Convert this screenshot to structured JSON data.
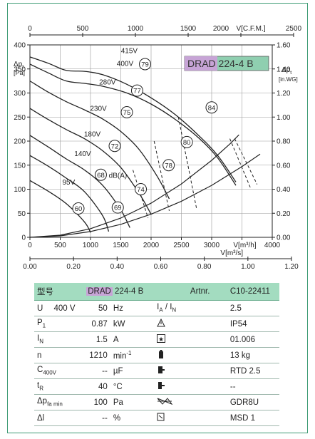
{
  "chart_data": {
    "type": "line",
    "title_model": {
      "prefix": "DRAD",
      "suffix": " 224-4 B"
    },
    "left_axis": {
      "label_lines": [
        "Δp",
        "[Pa]"
      ],
      "sub": "t",
      "ticks": [
        0,
        50,
        100,
        150,
        200,
        250,
        300,
        350,
        400
      ],
      "ylim": [
        0,
        400
      ]
    },
    "right_axis": {
      "label_lines": [
        "Δp",
        "[in.WG]"
      ],
      "sub": "t",
      "ticks": [
        "0.00",
        "0.20",
        "0.40",
        "0.60",
        "0.80",
        "1.00",
        "1.20",
        "1.40",
        "1.60"
      ]
    },
    "bottom_axis_m3h": {
      "label": "V[m³/h]",
      "ticks": [
        "0",
        "500",
        "1000",
        "1500",
        "2000",
        "2500",
        "3000",
        "3500",
        "4000"
      ],
      "xlim": [
        0,
        4000
      ]
    },
    "top_axis_cfm": {
      "label": "V[C.F.M.]",
      "ticks": [
        "0",
        "500",
        "1000",
        "1500",
        "2000",
        "2500"
      ]
    },
    "bottom_axis_m3s": {
      "label": "V[m³/s]",
      "ticks": [
        "0.00",
        "0.20",
        "0.40",
        "0.60",
        "0.80",
        "1.00",
        "1.20"
      ]
    },
    "series": [
      {
        "name": "415V",
        "x": [
          0,
          300,
          600,
          900,
          1200,
          1600,
          2000,
          2400,
          2800,
          3100,
          3400
        ],
        "y": [
          375,
          362,
          347,
          345,
          338,
          318,
          290,
          255,
          210,
          170,
          115
        ]
      },
      {
        "name": "400V",
        "x": [
          0,
          300,
          600,
          900,
          1200,
          1600,
          2000,
          2400,
          2800,
          3100,
          3400
        ],
        "y": [
          360,
          342,
          325,
          320,
          314,
          300,
          277,
          245,
          205,
          165,
          108
        ]
      },
      {
        "name": "280V",
        "x": [
          0,
          300,
          600,
          900,
          1200,
          1500,
          1800,
          2100,
          2300
        ],
        "y": [
          325,
          302,
          282,
          265,
          246,
          220,
          183,
          127,
          80
        ]
      },
      {
        "name": "230V",
        "x": [
          0,
          300,
          600,
          900,
          1200,
          1500,
          1800,
          2000
        ],
        "y": [
          268,
          245,
          224,
          205,
          180,
          145,
          92,
          48
        ]
      },
      {
        "name": "180V",
        "x": [
          0,
          300,
          600,
          900,
          1200,
          1500,
          1650
        ],
        "y": [
          212,
          188,
          163,
          140,
          108,
          57,
          20
        ]
      },
      {
        "name": "140V",
        "x": [
          0,
          300,
          600,
          900,
          1200,
          1300
        ],
        "y": [
          170,
          148,
          123,
          95,
          45,
          12
        ]
      },
      {
        "name": "95V",
        "x": [
          0,
          300,
          600,
          900,
          1000
        ],
        "y": [
          118,
          96,
          70,
          32,
          10
        ]
      }
    ],
    "system_curves": [
      {
        "x": [
          0,
          500,
          1000,
          1500,
          2000,
          2500,
          3000,
          3500,
          3800
        ],
        "y": [
          0,
          3,
          12,
          27,
          48,
          75,
          108,
          147,
          173
        ]
      },
      {
        "x": [
          0,
          500,
          1000,
          1500,
          2000,
          2500,
          3000,
          3300,
          3450
        ],
        "y": [
          0,
          4.5,
          18,
          40,
          71,
          111,
          160,
          194,
          213
        ]
      }
    ],
    "db_circles": [
      {
        "label": "79",
        "x": 1900,
        "y": 360
      },
      {
        "label": "77",
        "x": 1770,
        "y": 305
      },
      {
        "label": "75",
        "x": 1600,
        "y": 260
      },
      {
        "label": "72",
        "x": 1400,
        "y": 190
      },
      {
        "label": "68",
        "x": 1170,
        "y": 130
      },
      {
        "label": "60",
        "x": 800,
        "y": 60
      },
      {
        "label": "69",
        "x": 1450,
        "y": 62
      },
      {
        "label": "74",
        "x": 1830,
        "y": 100
      },
      {
        "label": "78",
        "x": 2290,
        "y": 150
      },
      {
        "label": "80",
        "x": 2590,
        "y": 198
      },
      {
        "label": "84",
        "x": 3000,
        "y": 270
      }
    ],
    "db_unit": "dB(A)",
    "voltage_labels": [
      {
        "text": "415V",
        "x": 1640,
        "y": 383
      },
      {
        "text": "400V",
        "x": 1570,
        "y": 356
      },
      {
        "text": "280V",
        "x": 1280,
        "y": 318
      },
      {
        "text": "230V",
        "x": 1130,
        "y": 263
      },
      {
        "text": "180V",
        "x": 1030,
        "y": 210
      },
      {
        "text": "140V",
        "x": 870,
        "y": 169
      },
      {
        "text": "95V",
        "x": 640,
        "y": 110
      }
    ],
    "grid": true
  },
  "table": {
    "header": {
      "type_label": "型号",
      "model_prefix": "DRAD",
      "model_suffix": " 224-4 B",
      "artnr_label": "Artnr.",
      "artnr_value": "C10-22411"
    },
    "rows": [
      {
        "p": "U",
        "p2": "400   V",
        "v": "50",
        "u": "Hz",
        "k": "I_A / I_N",
        "val": "2.5"
      },
      {
        "p": "P",
        "psub": "1",
        "v": "0.87",
        "u": "kW",
        "icon": "warning-triangle-icon",
        "val": "IP54"
      },
      {
        "p": "I",
        "psub": "N",
        "v": "1.5",
        "u": "A",
        "icon": "star-box-icon",
        "val": "01.006"
      },
      {
        "p": "n",
        "v": "1210",
        "u": "min",
        "usup": "-1",
        "icon": "weight-icon",
        "val": "13 kg"
      },
      {
        "p": "C",
        "psub": "400V",
        "v": "--",
        "u": "µF",
        "icon": "thermal-icon",
        "val": "RTD 2.5"
      },
      {
        "p": "t",
        "psub": "R",
        "v": "40",
        "u": "°C",
        "icon": "switch-icon",
        "val": "--"
      },
      {
        "p": "Δp",
        "psub": "fa min",
        "v": "100",
        "u": "Pa",
        "icon": "grille-icon",
        "val": "GDR8U"
      },
      {
        "p": "Δl",
        "v": "--",
        "u": "%",
        "icon": "document-icon",
        "val": "MSD 1"
      }
    ]
  }
}
